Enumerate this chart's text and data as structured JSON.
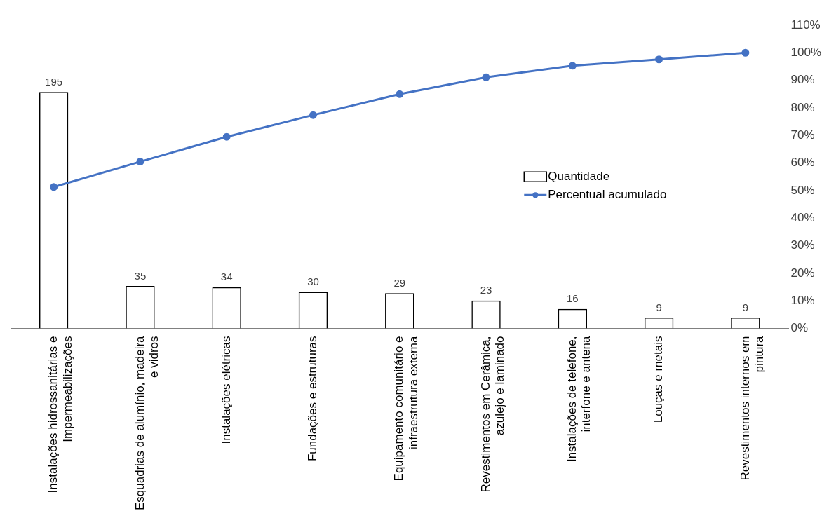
{
  "chart_data": {
    "type": "bar",
    "categories": [
      "Instalações hidrossanitárias e Impermeabilizações",
      "Esquadrias de alumínio, madeira e vidros",
      "Instalações elétricas",
      "Fundações e estruturas",
      "Equipamento comunitário e infraestrutura externa",
      "Revestimentos em Cerâmica, azulejo e laminado",
      "Instalações de telefone, interfone e antena",
      "Louças e metais",
      "Revestimentos internos em pintura"
    ],
    "series": [
      {
        "name": "Quantidade",
        "color": "#000000",
        "data_labels": true,
        "values": [
          195,
          35,
          34,
          30,
          29,
          23,
          16,
          9,
          9
        ]
      },
      {
        "name": "Percentual acumulado",
        "type": "line",
        "axis": "y2",
        "color": "#4472c4",
        "marker": "circle",
        "values": [
          51.3,
          60.5,
          69.5,
          77.4,
          85.0,
          91.1,
          95.3,
          97.6,
          100
        ]
      }
    ],
    "ylim": [
      0,
      250
    ],
    "y2lim": [
      0,
      110
    ],
    "y2ticks": [
      {
        "value": 0,
        "label": "0%"
      },
      {
        "value": 10,
        "label": "10%"
      },
      {
        "value": 20,
        "label": "20%"
      },
      {
        "value": 30,
        "label": "30%"
      },
      {
        "value": 40,
        "label": "40%"
      },
      {
        "value": 50,
        "label": "50%"
      },
      {
        "value": 60,
        "label": "60%"
      },
      {
        "value": 70,
        "label": "70%"
      },
      {
        "value": 80,
        "label": "80%"
      },
      {
        "value": 90,
        "label": "90%"
      },
      {
        "value": 100,
        "label": "100%"
      },
      {
        "value": 110,
        "label": "110%"
      }
    ],
    "grid": false,
    "legend": "right"
  }
}
